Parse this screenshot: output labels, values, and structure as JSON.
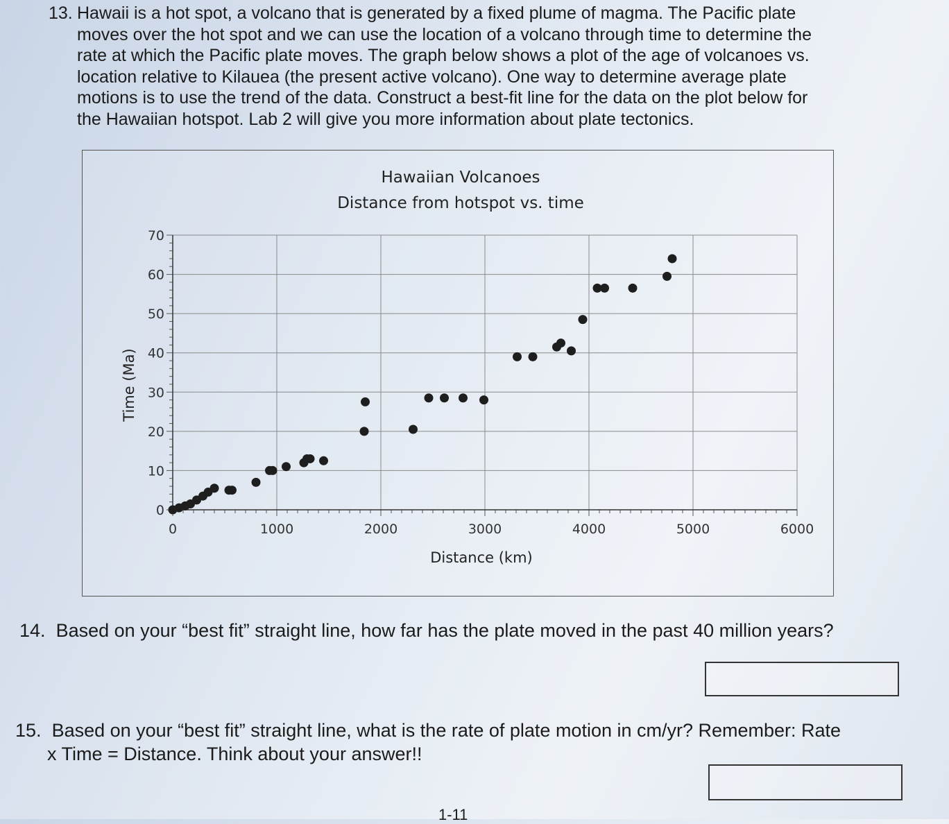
{
  "q13": {
    "number": "13.",
    "lines": [
      "Hawaii is a hot spot, a volcano that is generated by a fixed plume of magma. The Pacific plate",
      "moves over the hot spot and we can use the location of a volcano through time to determine the",
      "rate at which the Pacific plate moves. The graph below shows a plot of the age of volcanoes vs.",
      "location relative to Kilauea (the present active volcano). One way to determine average plate",
      "motions is to use the trend of the data. Construct a best-fit line for the data on the plot below for",
      "the Hawaiian hotspot.  Lab 2 will give you more information about plate tectonics."
    ]
  },
  "chart_data": {
    "type": "scatter",
    "title": "Hawaiian Volcanoes",
    "subtitle": "Distance from hotspot vs. time",
    "xlabel": "Distance (km)",
    "ylabel": "Time (Ma)",
    "xlim": [
      0,
      6000
    ],
    "ylim": [
      0,
      70
    ],
    "x_ticks": [
      "0",
      "1000",
      "2000",
      "3000",
      "4000",
      "5000",
      "6000"
    ],
    "y_ticks": [
      "0",
      "10",
      "20",
      "30",
      "40",
      "50",
      "60",
      "70"
    ],
    "grid": true,
    "points": [
      {
        "x": 0,
        "y": 0
      },
      {
        "x": 60,
        "y": 0.5
      },
      {
        "x": 120,
        "y": 1
      },
      {
        "x": 170,
        "y": 1.5
      },
      {
        "x": 230,
        "y": 2.5
      },
      {
        "x": 290,
        "y": 3.5
      },
      {
        "x": 340,
        "y": 4.5
      },
      {
        "x": 400,
        "y": 5.5
      },
      {
        "x": 540,
        "y": 5
      },
      {
        "x": 570,
        "y": 5
      },
      {
        "x": 800,
        "y": 7
      },
      {
        "x": 930,
        "y": 10
      },
      {
        "x": 960,
        "y": 10
      },
      {
        "x": 1090,
        "y": 11
      },
      {
        "x": 1260,
        "y": 12
      },
      {
        "x": 1290,
        "y": 13
      },
      {
        "x": 1320,
        "y": 13
      },
      {
        "x": 1450,
        "y": 12.5
      },
      {
        "x": 1840,
        "y": 20
      },
      {
        "x": 1850,
        "y": 27.5
      },
      {
        "x": 2310,
        "y": 20.5
      },
      {
        "x": 2460,
        "y": 28.5
      },
      {
        "x": 2610,
        "y": 28.5
      },
      {
        "x": 2790,
        "y": 28.5
      },
      {
        "x": 2990,
        "y": 28
      },
      {
        "x": 3310,
        "y": 39
      },
      {
        "x": 3460,
        "y": 39
      },
      {
        "x": 3690,
        "y": 41.5
      },
      {
        "x": 3730,
        "y": 42.5
      },
      {
        "x": 3830,
        "y": 40.5
      },
      {
        "x": 3940,
        "y": 48.5
      },
      {
        "x": 4080,
        "y": 56.5
      },
      {
        "x": 4150,
        "y": 56.5
      },
      {
        "x": 4420,
        "y": 56.5
      },
      {
        "x": 4750,
        "y": 59.5
      },
      {
        "x": 4800,
        "y": 64
      }
    ]
  },
  "q14": {
    "number": "14.",
    "text": "Based on your “best fit” straight line, how far has the plate moved in the past 40 million years?"
  },
  "q15": {
    "number": "15.",
    "line1": "Based on your “best fit” straight line, what is the rate of plate motion in cm/yr? Remember: Rate",
    "line2": "x Time = Distance.  Think about your answer!!"
  },
  "page_number": "1-11"
}
